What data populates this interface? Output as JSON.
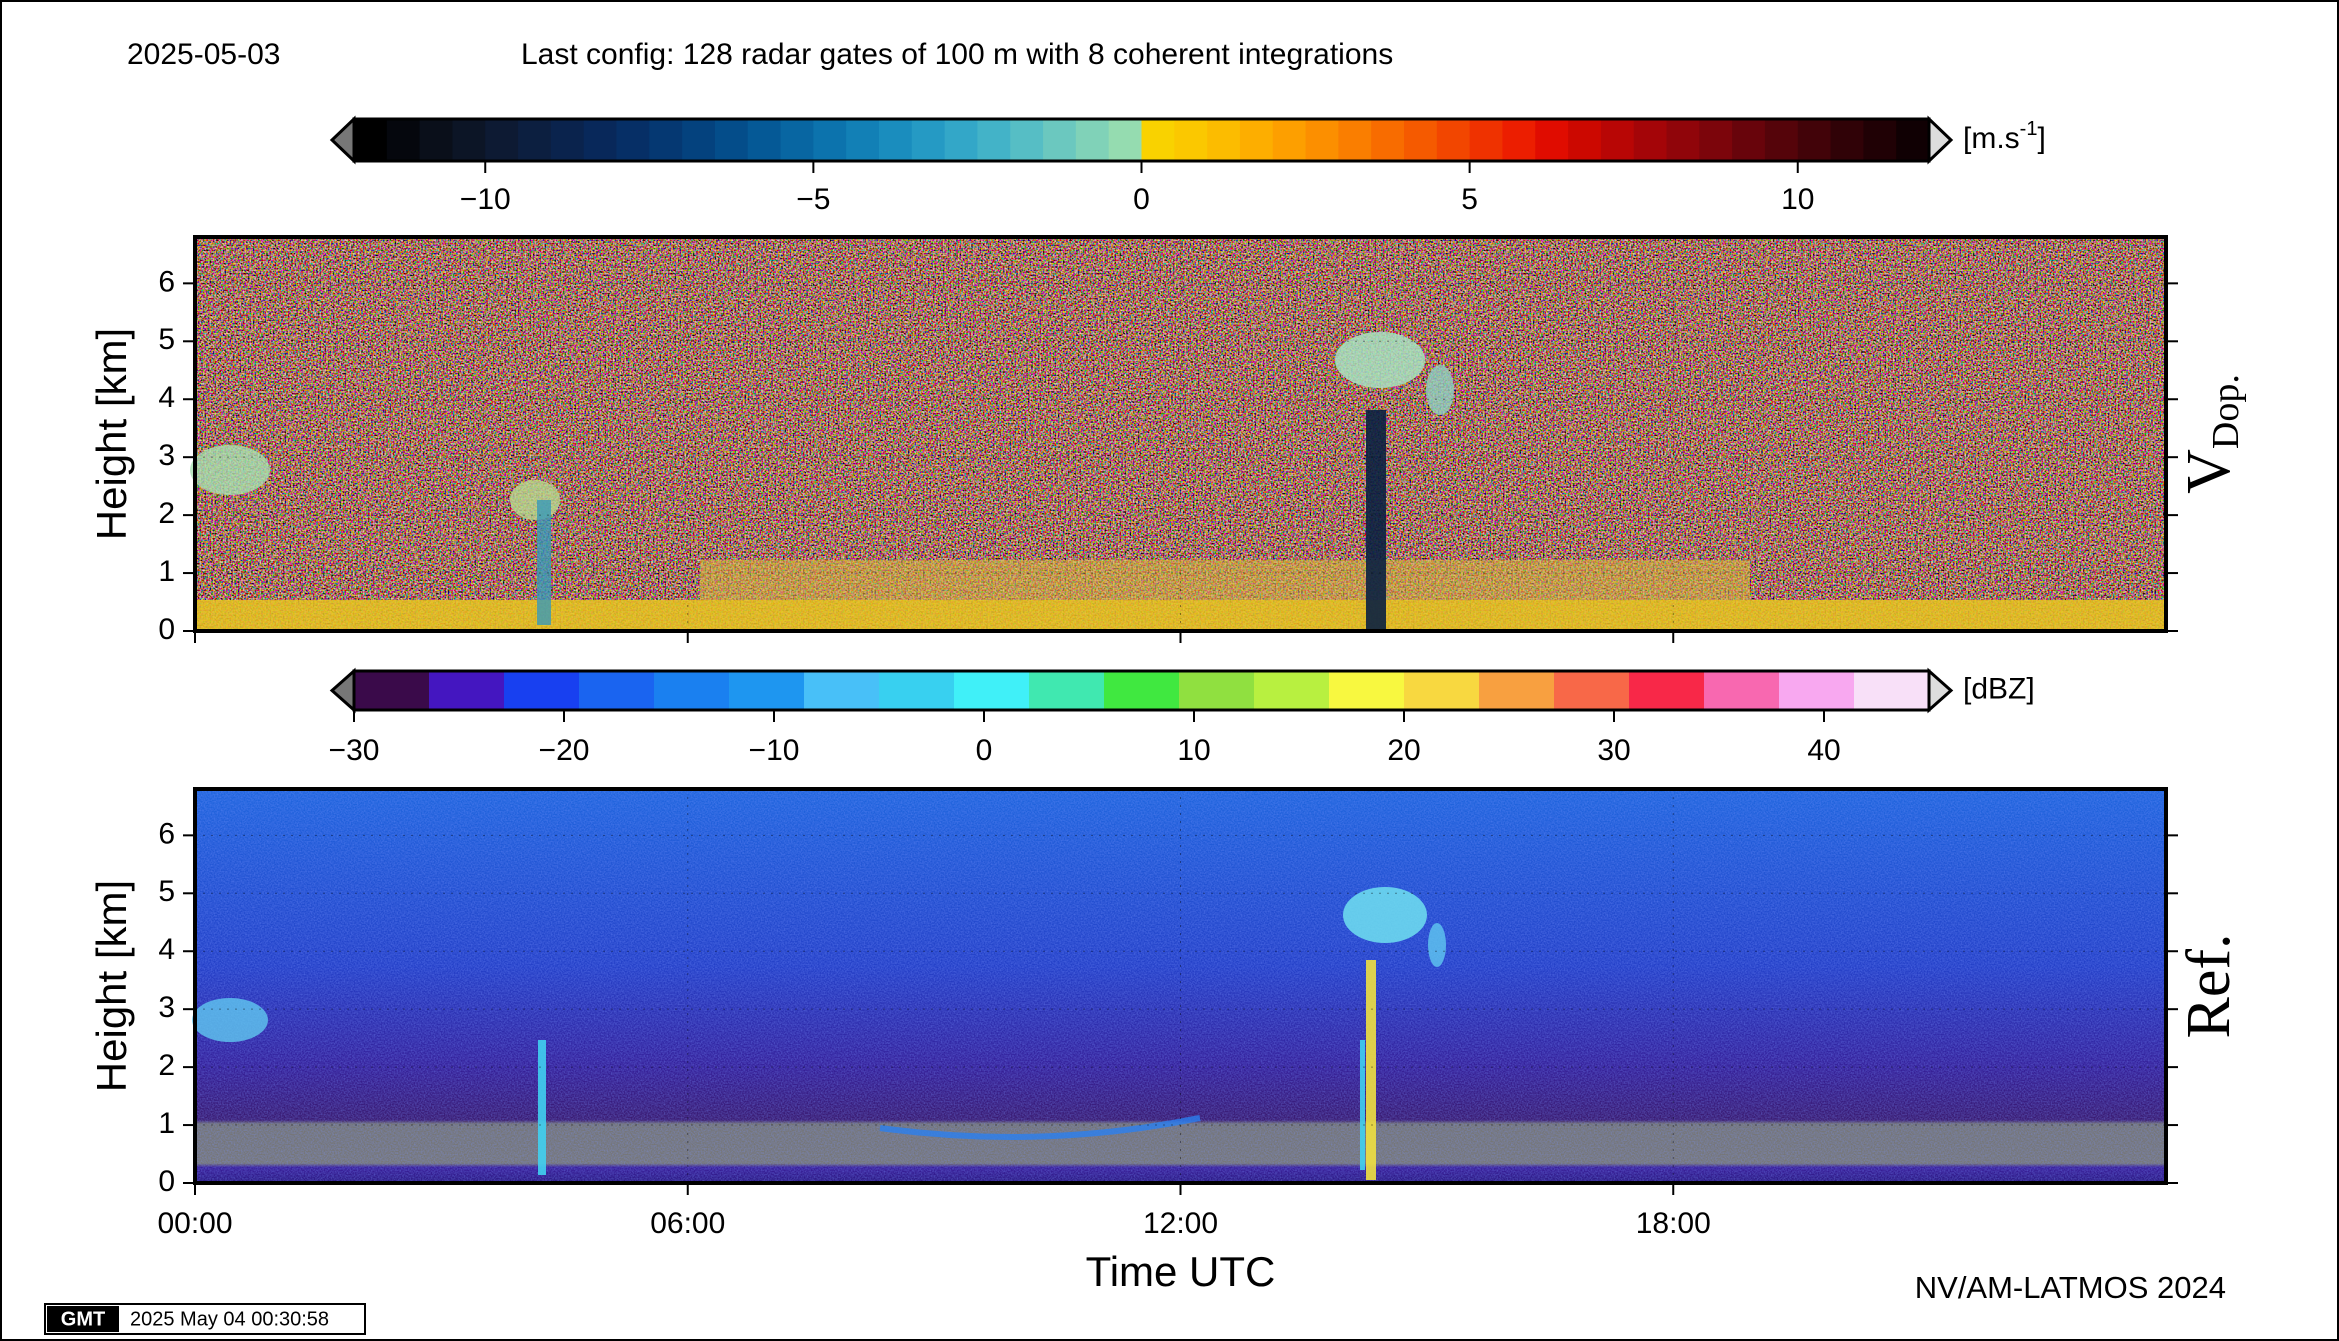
{
  "date": "2025-05-03",
  "title": "Last config: 128 radar gates of 100 m with 8 coherent integrations",
  "footer": "NV/AM-LATMOS 2024",
  "logo": "GMT",
  "timestamp": "2025 May 04 00:30:58",
  "chart_data": [
    {
      "type": "heatmap",
      "label": "V",
      "label_sub": "Dop.",
      "ylabel": "Height [km]",
      "ylim": [
        0,
        6.8
      ],
      "yticks": [
        0,
        1,
        2,
        3,
        4,
        5,
        6
      ],
      "xlim": [
        0,
        24
      ],
      "colorbar": {
        "lim": [
          -12,
          12
        ],
        "ticks": [
          {
            "value": -10,
            "label": "−10"
          },
          {
            "value": -5,
            "label": "−5"
          },
          0,
          5,
          10
        ],
        "unit": [
          "[m.s",
          "-1",
          "]"
        ],
        "colors": [
          "#000000",
          "#05070d",
          "#0a0f1a",
          "#0c1526",
          "#0d1a33",
          "#0c1f40",
          "#0a234d",
          "#08285a",
          "#062f66",
          "#053872",
          "#04427e",
          "#044d8a",
          "#055996",
          "#0866a2",
          "#0c73ad",
          "#1280b6",
          "#1a8dbe",
          "#259ac4",
          "#33a7c8",
          "#43b3c8",
          "#56bec5",
          "#6bc8bf",
          "#80d2b8",
          "#95dcb0",
          "#f9d200",
          "#fbc800",
          "#fcbc00",
          "#fdae00",
          "#fd9f00",
          "#fc8f00",
          "#fa7e00",
          "#f86c00",
          "#f55a00",
          "#f24600",
          "#ef3200",
          "#ec1e00",
          "#e00c00",
          "#cc0800",
          "#b80605",
          "#a40508",
          "#90050a",
          "#7c050b",
          "#68040b",
          "#55040a",
          "#420309",
          "#300207",
          "#200105",
          "#100003"
        ]
      }
    },
    {
      "type": "heatmap",
      "label": "Ref.",
      "ylabel": "Height [km]",
      "xlabel": "Time UTC",
      "ylim": [
        0,
        6.8
      ],
      "yticks": [
        0,
        1,
        2,
        3,
        4,
        5,
        6
      ],
      "xlim": [
        0,
        24
      ],
      "xticks": [
        {
          "value": 0,
          "label": "00:00"
        },
        {
          "value": 6,
          "label": "06:00"
        },
        {
          "value": 12,
          "label": "12:00"
        },
        {
          "value": 18,
          "label": "18:00"
        }
      ],
      "colorbar": {
        "lim": [
          -30,
          45
        ],
        "ticks": [
          {
            "value": -30,
            "label": "−30"
          },
          {
            "value": -20,
            "label": "−20"
          },
          {
            "value": -10,
            "label": "−10"
          },
          0,
          10,
          20,
          30,
          40
        ],
        "unit": [
          "[dBZ]"
        ],
        "colors": [
          "#3a0a4a",
          "#4416c0",
          "#1840f0",
          "#1a64f0",
          "#1a80f0",
          "#1e96f0",
          "#48c0f8",
          "#38d0f0",
          "#40f0f8",
          "#40e8b0",
          "#40e840",
          "#90e040",
          "#b8f040",
          "#f8f840",
          "#f8d840",
          "#f8a040",
          "#f86848",
          "#f82848",
          "#f868b0",
          "#f8a8f0",
          "#f8e0f8"
        ]
      }
    }
  ]
}
